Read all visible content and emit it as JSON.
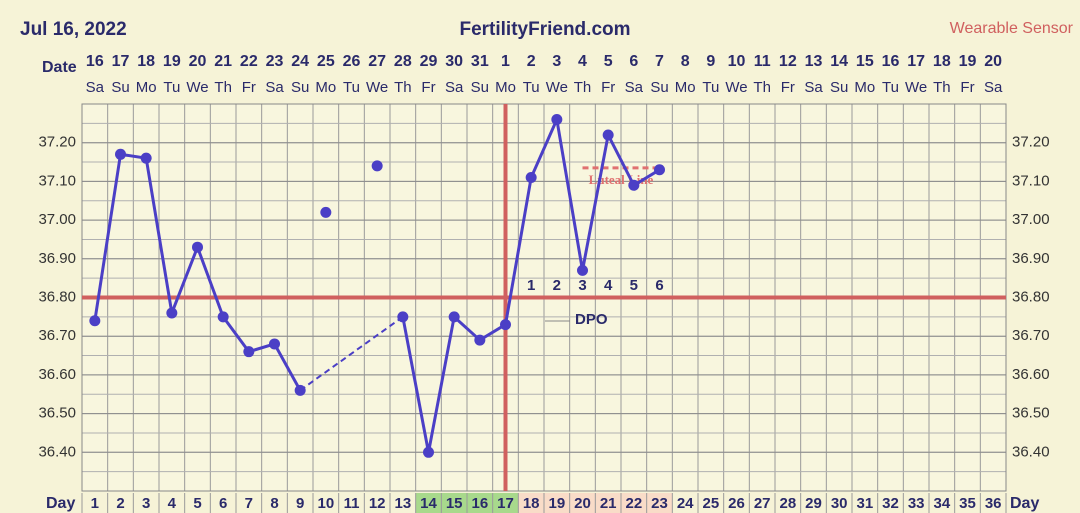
{
  "header": {
    "date": "Jul 16, 2022",
    "site": "FertilityFriend.com",
    "source": "Wearable Sensor"
  },
  "chart_data": {
    "type": "line",
    "date_label": "Date",
    "day_label": "Day",
    "dates": [
      16,
      17,
      18,
      19,
      20,
      21,
      22,
      23,
      24,
      25,
      26,
      27,
      28,
      29,
      30,
      31,
      1,
      2,
      3,
      4,
      5,
      6,
      7,
      8,
      9,
      10,
      11,
      12,
      13,
      14,
      15,
      16,
      17,
      18,
      19,
      20
    ],
    "weekdays": [
      "Sa",
      "Su",
      "Mo",
      "Tu",
      "We",
      "Th",
      "Fr",
      "Sa",
      "Su",
      "Mo",
      "Tu",
      "We",
      "Th",
      "Fr",
      "Sa",
      "Su",
      "Mo",
      "Tu",
      "We",
      "Th",
      "Fr",
      "Sa",
      "Su",
      "Mo",
      "Tu",
      "We",
      "Th",
      "Fr",
      "Sa",
      "Su",
      "Mo",
      "Tu",
      "We",
      "Th",
      "Fr",
      "Sa"
    ],
    "days": [
      1,
      2,
      3,
      4,
      5,
      6,
      7,
      8,
      9,
      10,
      11,
      12,
      13,
      14,
      15,
      16,
      17,
      18,
      19,
      20,
      21,
      22,
      23,
      24,
      25,
      26,
      27,
      28,
      29,
      30,
      31,
      32,
      33,
      34,
      35,
      36
    ],
    "series": [
      {
        "name": "temperature",
        "color": "#4b3fc6",
        "values": [
          36.74,
          37.17,
          37.16,
          36.76,
          36.93,
          36.75,
          36.66,
          36.68,
          36.56,
          null,
          null,
          null,
          36.75,
          36.4,
          36.75,
          36.69,
          36.73,
          37.11,
          37.26,
          36.87,
          37.22,
          37.09,
          37.13,
          null,
          null,
          null,
          null,
          null,
          null,
          null,
          null,
          null,
          null,
          null,
          null,
          null
        ]
      },
      {
        "name": "discarded",
        "color": "#4b3fc6",
        "values": [
          null,
          null,
          null,
          null,
          null,
          null,
          null,
          null,
          null,
          37.02,
          null,
          37.14,
          null,
          null,
          null,
          null,
          null,
          null,
          null,
          null,
          null,
          null,
          null,
          null,
          null,
          null,
          null,
          null,
          null,
          null,
          null,
          null,
          null,
          null,
          null,
          null
        ]
      }
    ],
    "ylim": [
      36.3,
      37.3
    ],
    "yticks": [
      {
        "value": 36.4,
        "label": "36.40"
      },
      {
        "value": 36.5,
        "label": "36.50"
      },
      {
        "value": 36.6,
        "label": "36.60"
      },
      {
        "value": 36.7,
        "label": "36.70"
      },
      {
        "value": 36.8,
        "label": "36.80"
      },
      {
        "value": 36.9,
        "label": "36.90"
      },
      {
        "value": 37.0,
        "label": "37.00"
      },
      {
        "value": 37.1,
        "label": "37.10"
      },
      {
        "value": 37.2,
        "label": "37.20"
      }
    ],
    "coverline": {
      "value": 36.8,
      "color": "#d0605f"
    },
    "ovulation_day": 17,
    "dpo": {
      "label": "DPO",
      "values": [
        1,
        2,
        3,
        4,
        5,
        6
      ]
    },
    "luteal_line": {
      "label": "Luteal Line",
      "value": 37.135,
      "from_day": 20,
      "to_day": 23,
      "color": "#e07070"
    },
    "highlights": [
      {
        "from_day": 14,
        "to_day": 17,
        "color": "#a8d98c"
      },
      {
        "from_day": 18,
        "to_day": 23,
        "color": "#f9dcc8"
      }
    ]
  }
}
